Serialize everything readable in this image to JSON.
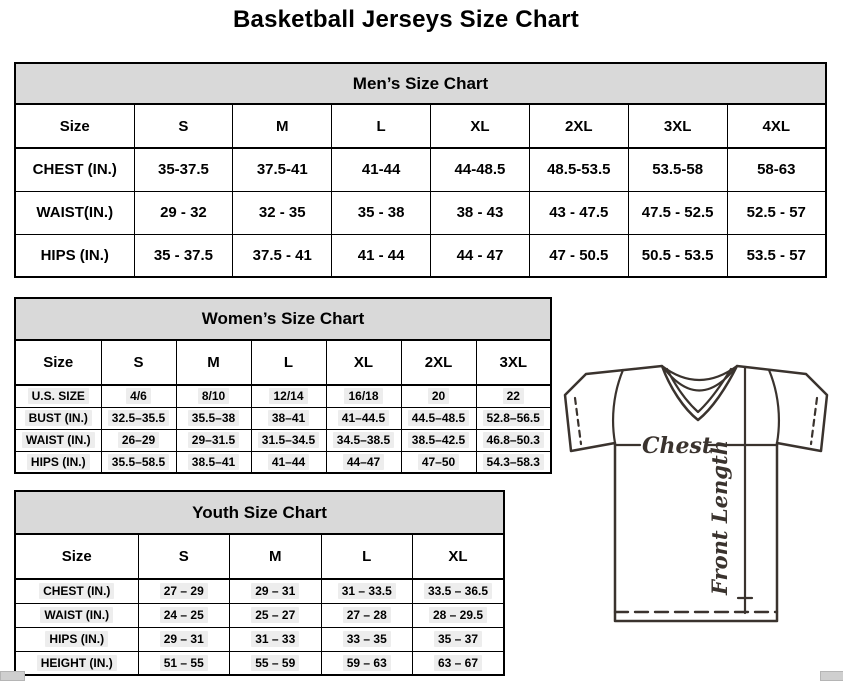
{
  "page": {
    "title": "Basketball Jerseys Size Chart"
  },
  "theme": {
    "header_fill": "#d9d9d9",
    "border_color": "#000000",
    "diagram_line_color": "#3a332e",
    "highlight_fill": "#ededed"
  },
  "mens": {
    "title": "Men’s Size Chart",
    "size_label": "Size",
    "sizes": [
      "S",
      "M",
      "L",
      "XL",
      "2XL",
      "3XL",
      "4XL"
    ],
    "rows": [
      {
        "label": "CHEST (IN.)",
        "values": [
          "35-37.5",
          "37.5-41",
          "41-44",
          "44-48.5",
          "48.5-53.5",
          "53.5-58",
          "58-63"
        ]
      },
      {
        "label": "WAIST(IN.)",
        "values": [
          "29 - 32",
          "32 - 35",
          "35 - 38",
          "38 - 43",
          "43 - 47.5",
          "47.5 - 52.5",
          "52.5 - 57"
        ]
      },
      {
        "label": "HIPS (IN.)",
        "values": [
          "35 - 37.5",
          "37.5 - 41",
          "41 - 44",
          "44 - 47",
          "47 - 50.5",
          "50.5 - 53.5",
          "53.5 - 57"
        ]
      }
    ]
  },
  "womens": {
    "title": "Women’s Size Chart",
    "size_label": "Size",
    "sizes": [
      "S",
      "M",
      "L",
      "XL",
      "2XL",
      "3XL"
    ],
    "rows": [
      {
        "label": "U.S. SIZE",
        "values": [
          "4/6",
          "8/10",
          "12/14",
          "16/18",
          "20",
          "22"
        ]
      },
      {
        "label": "BUST (IN.)",
        "values": [
          "32.5–35.5",
          "35.5–38",
          "38–41",
          "41–44.5",
          "44.5–48.5",
          "52.8–56.5"
        ]
      },
      {
        "label": "WAIST (IN.)",
        "values": [
          "26–29",
          "29–31.5",
          "31.5–34.5",
          "34.5–38.5",
          "38.5–42.5",
          "46.8–50.3"
        ]
      },
      {
        "label": "HIPS (IN.)",
        "values": [
          "35.5–58.5",
          "38.5–41",
          "41–44",
          "44–47",
          "47–50",
          "54.3–58.3"
        ]
      }
    ]
  },
  "youth": {
    "title": "Youth Size Chart",
    "size_label": "Size",
    "sizes": [
      "S",
      "M",
      "L",
      "XL"
    ],
    "rows": [
      {
        "label": "CHEST (IN.)",
        "values": [
          "27 – 29",
          "29 – 31",
          "31 – 33.5",
          "33.5 – 36.5"
        ]
      },
      {
        "label": "WAIST (IN.)",
        "values": [
          "24 – 25",
          "25 – 27",
          "27 – 28",
          "28 – 29.5"
        ]
      },
      {
        "label": "HIPS (IN.)",
        "values": [
          "29 – 31",
          "31 – 33",
          "33 – 35",
          "35 – 37"
        ]
      },
      {
        "label": "HEIGHT (IN.)",
        "values": [
          "51 – 55",
          "55 – 59",
          "59 – 63",
          "63 – 67"
        ]
      }
    ]
  },
  "diagram": {
    "chest_label": "Chest",
    "front_length_label": "Front Length"
  }
}
